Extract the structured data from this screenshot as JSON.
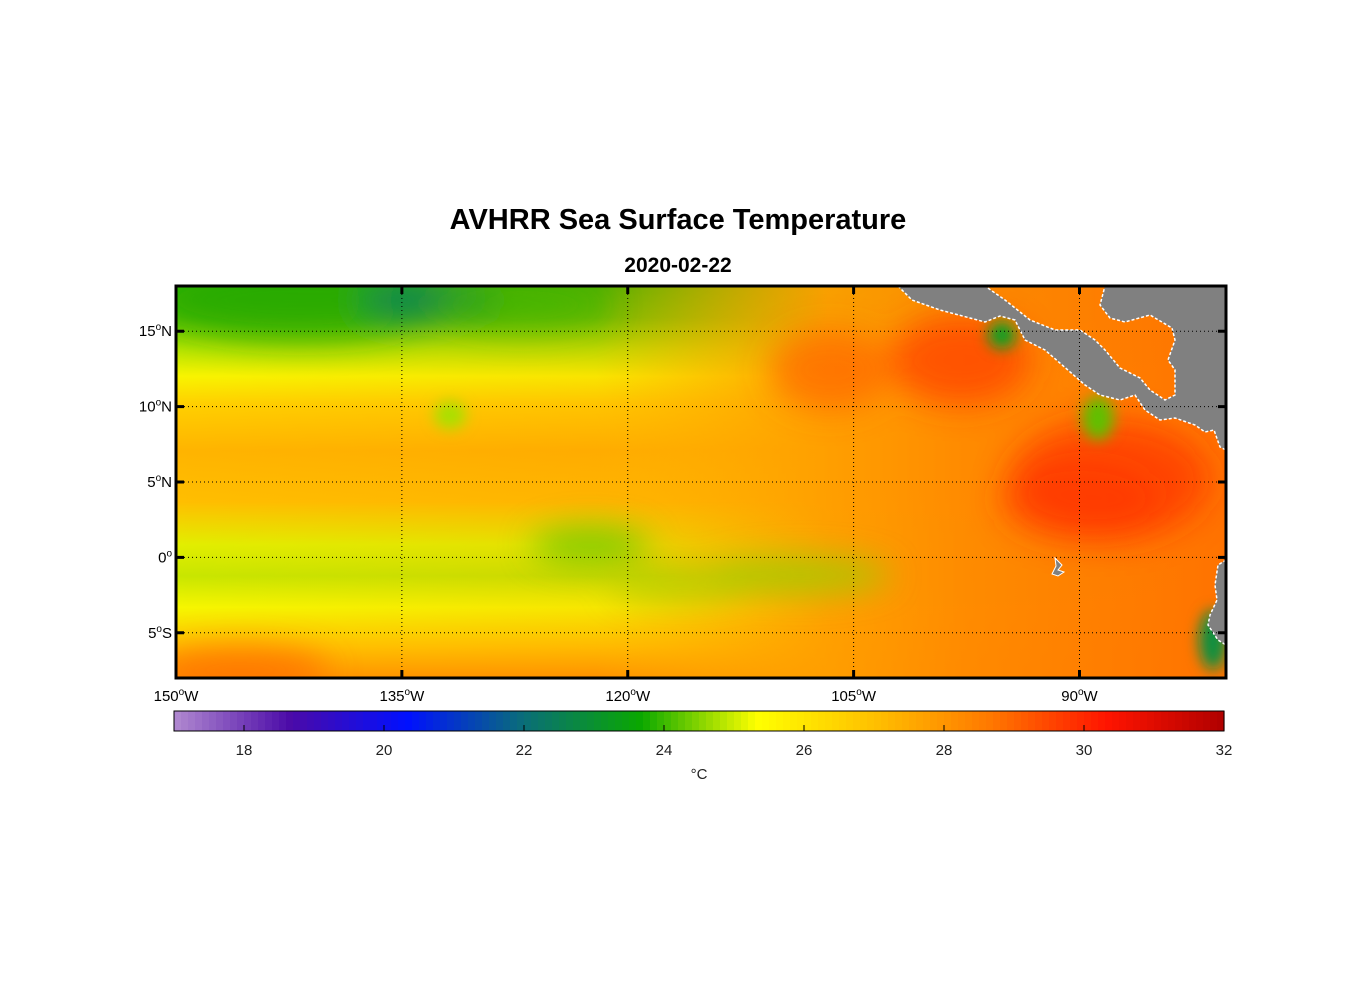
{
  "title": "AVHRR Sea Surface Temperature",
  "subtitle": "2020-02-22",
  "lat_ticks": [
    {
      "deg": "15",
      "hem": "N",
      "value": 15
    },
    {
      "deg": "10",
      "hem": "N",
      "value": 10
    },
    {
      "deg": "5",
      "hem": "N",
      "value": 5
    },
    {
      "deg": "0",
      "hem": "",
      "value": 0
    },
    {
      "deg": "5",
      "hem": "S",
      "value": -5
    }
  ],
  "lon_ticks": [
    {
      "deg": "150",
      "hem": "W",
      "value": -150
    },
    {
      "deg": "135",
      "hem": "W",
      "value": -135
    },
    {
      "deg": "120",
      "hem": "W",
      "value": -120
    },
    {
      "deg": "105",
      "hem": "W",
      "value": -105
    },
    {
      "deg": "90",
      "hem": "W",
      "value": -90
    }
  ],
  "colorbar": {
    "min": 17,
    "max": 32,
    "ticks": [
      "18",
      "20",
      "22",
      "24",
      "26",
      "28",
      "30",
      "32"
    ],
    "unit": "°C"
  },
  "colors": {
    "land": "#808080",
    "ramp": [
      "#b18ad0",
      "#4b0aa8",
      "#0010ff",
      "#0a6e78",
      "#0aa800",
      "#ffff00",
      "#ffc000",
      "#ff7800",
      "#ff1400",
      "#b00000"
    ]
  }
}
